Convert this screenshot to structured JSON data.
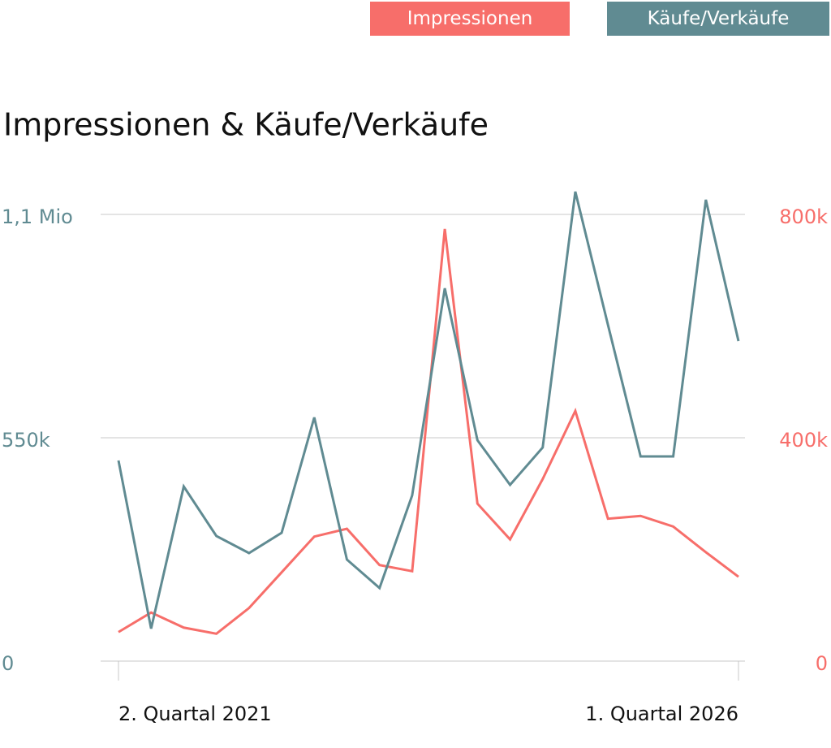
{
  "chart_data": {
    "type": "line",
    "title": "Impressionen & Käufe/Verkäufe",
    "categories": [
      "2. Quartal 2021",
      null,
      null,
      null,
      null,
      null,
      null,
      null,
      null,
      null,
      null,
      null,
      null,
      null,
      null,
      null,
      null,
      null,
      null,
      "1. Quartal 2026"
    ],
    "series": [
      {
        "name": "Impressionen",
        "color": "#f76e6a",
        "axis": "y2",
        "values": [
          52000,
          87000,
          60000,
          49000,
          95000,
          159000,
          223000,
          237000,
          172000,
          161000,
          774000,
          282000,
          218000,
          326000,
          448000,
          255000,
          260000,
          241000,
          195000,
          151000
        ]
      },
      {
        "name": "Käufe/Verkäufe",
        "color": "#608b92",
        "axis": "y",
        "values": [
          494000,
          80000,
          430000,
          308000,
          266000,
          316000,
          600000,
          250000,
          180000,
          408000,
          918000,
          544000,
          434000,
          526000,
          1156000,
          828000,
          504000,
          504000,
          1136000,
          788000
        ]
      }
    ],
    "ylim": [
      0,
      1100000
    ],
    "yticks": [
      0,
      {
        "value": 550000,
        "label": "550k"
      },
      {
        "value": 1100000,
        "label": "1,1 Mio"
      }
    ],
    "y2lim": [
      0,
      800000
    ],
    "y2ticks": [
      0,
      {
        "value": 400000,
        "label": "400k"
      },
      {
        "value": 800000,
        "label": "800k"
      }
    ],
    "grid": true
  }
}
